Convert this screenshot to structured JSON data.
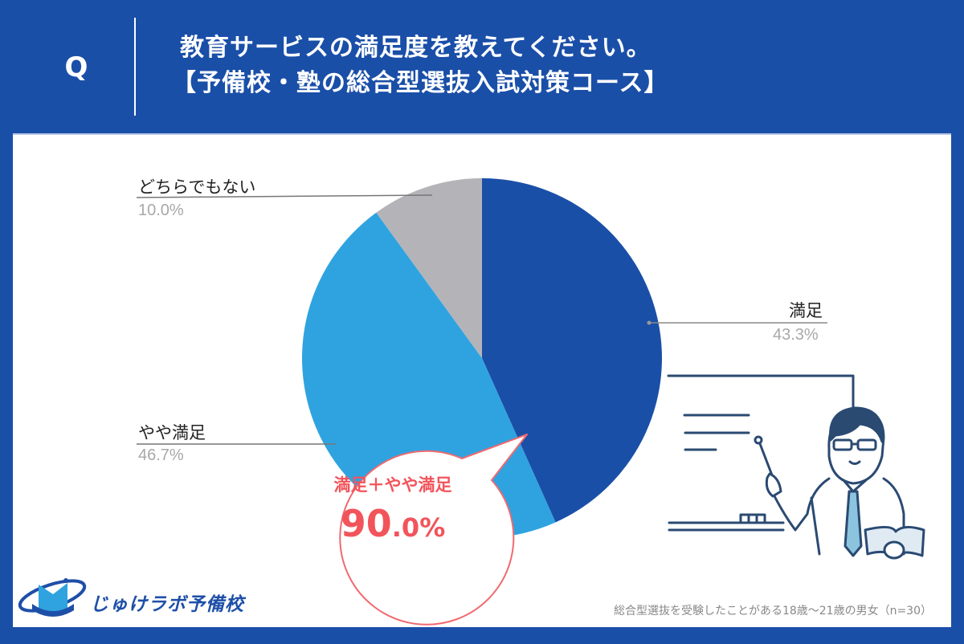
{
  "header": {
    "q_mark": "Q",
    "title_line1": "教育サービスの満足度を教えてください。",
    "title_line2": "【予備校・塾の総合型選抜入試対策コース】"
  },
  "chart_data": {
    "type": "pie",
    "title": "教育サービスの満足度を教えてください。【予備校・塾の総合型選抜入試対策コース】",
    "categories": [
      "満足",
      "やや満足",
      "どちらでもない"
    ],
    "values": [
      43.3,
      46.7,
      10.0
    ],
    "unit": "%",
    "colors": [
      "#1a4fa8",
      "#2fa3e0",
      "#b4b4b8"
    ],
    "start_angle": "12 o'clock, clockwise",
    "annotation": {
      "label": "満足＋やや満足",
      "value": "90.0%"
    },
    "sample_note": "総合型選抜を受験したことがある18歳～21歳の男女（n=30）"
  },
  "labels": {
    "satisfied": {
      "name": "満足",
      "pct": "43.3%"
    },
    "somewhat": {
      "name": "やや満足",
      "pct": "46.7%"
    },
    "neutral": {
      "name": "どちらでもない",
      "pct": "10.0%"
    }
  },
  "bubble": {
    "label": "満足＋やや満足",
    "value_int": "90",
    "value_dec": ".0%"
  },
  "colors": {
    "brand_blue": "#1a4fa8",
    "light_blue": "#2fa3e0",
    "gray": "#b4b4b8",
    "accent_red": "#f2545b"
  },
  "logo": {
    "text": "じゅけラボ予備校"
  },
  "footnote": "総合型選抜を受験したことがある18歳～21歳の男女（n=30）"
}
